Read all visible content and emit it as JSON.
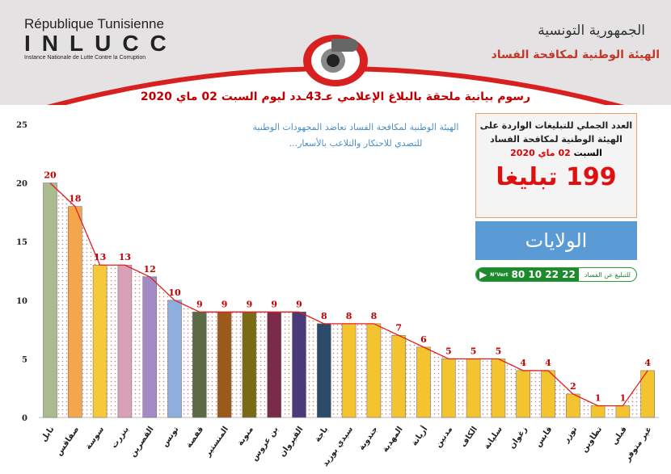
{
  "header": {
    "fr_republic": "République Tunisienne",
    "acronym": "INLUCC",
    "fr_instance": "Instance Nationale de Lutte Contre la Corruption",
    "ar_republic": "الجمهورية التونسية",
    "ar_instance": "الهيئة الوطنية لمكافحة الفساد"
  },
  "subtitle": [
    "الهيئة الوطنية لمكافحة الفساد تعاضد المجهودات الوطنية",
    "للتصدي للاحتكار والتلاعب بالأسعار..."
  ],
  "summary": {
    "line1": "العدد الجملي للتبليغات الواردة على",
    "line2": "الهيئة الوطنية لمكافحة الفساد",
    "day": "السبت",
    "date": "02 ماي 2020",
    "total": "199 تبليغا",
    "regions_label": "الولايات"
  },
  "hotline": {
    "label": "للتبليغ عن الفساد",
    "number": "80 10 22 22",
    "badge": "N°Vert"
  },
  "colors": {
    "accent": "#c00000",
    "line": "#e02020",
    "blue_panel": "#5b9bd5",
    "green": "#1e8a2e"
  },
  "chart_data": {
    "type": "bar",
    "title": "رسوم بيانية ملحقة بالبلاغ الإعلامي عـ43ـدد ليوم السبت 02 ماي 2020",
    "categories": [
      "نابل",
      "صفاقس",
      "سوسة",
      "بنزرت",
      "القصرين",
      "تونس",
      "قفصة",
      "المنستير",
      "منوبة",
      "بن عروس",
      "القيروان",
      "باجة",
      "سيدي بوزيد",
      "جندوبة",
      "المهدية",
      "أريانة",
      "مدنين",
      "الكاف",
      "سليانة",
      "زغوان",
      "قابس",
      "توزر",
      "تطاوين",
      "قبلي",
      "غير متوفر"
    ],
    "values": [
      20,
      18,
      13,
      13,
      12,
      10,
      9,
      9,
      9,
      9,
      9,
      8,
      8,
      8,
      7,
      6,
      5,
      5,
      5,
      4,
      4,
      2,
      1,
      1,
      4
    ],
    "bar_colors": [
      "#a9bb8f",
      "#f5a64a",
      "#f6c93a",
      "#d9a0b8",
      "#a48bc8",
      "#8eaedb",
      "#5a6b45",
      "#9b5a1a",
      "#7a6a15",
      "#7a2a4a",
      "#4a3a7a",
      "#2c4a6a",
      "#f4c430",
      "#f4c430",
      "#f4c430",
      "#f4c430",
      "#f4c430",
      "#f4c430",
      "#f4c430",
      "#f4c430",
      "#f4c430",
      "#f4c430",
      "#f4c430",
      "#f4c430",
      "#f4c430"
    ],
    "ylim": [
      0,
      25
    ],
    "yticks": [
      0,
      5,
      10,
      15,
      20,
      25
    ],
    "data_labels": true,
    "overlay": "line connecting bar tops",
    "grid": false
  }
}
